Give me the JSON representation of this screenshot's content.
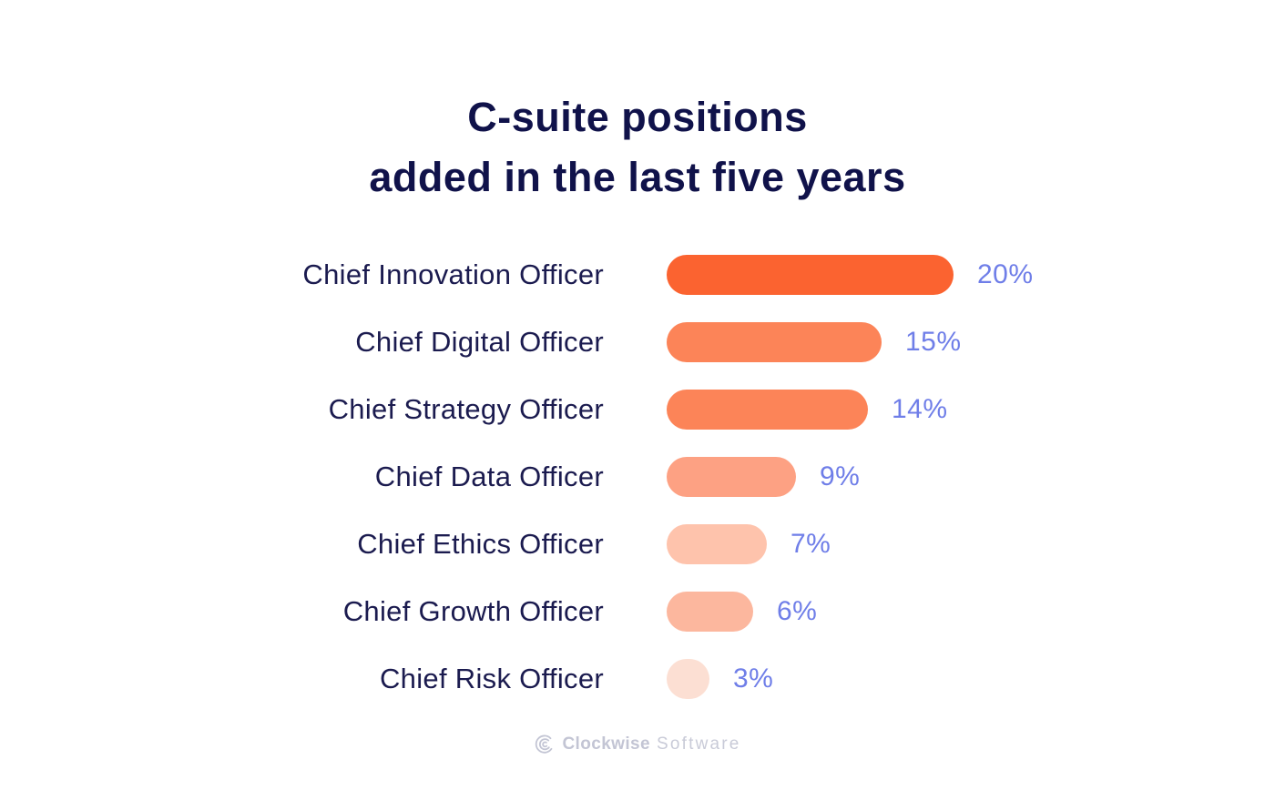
{
  "title": {
    "line1": "C-suite positions",
    "line2": "added in the last five years"
  },
  "chart_data": {
    "type": "bar",
    "orientation": "horizontal",
    "title": "C-suite positions added in the last five years",
    "categories": [
      "Chief Innovation Officer",
      "Chief Digital Officer",
      "Chief Strategy Officer",
      "Chief Data Officer",
      "Chief Ethics Officer",
      "Chief Growth Officer",
      "Chief Risk Officer"
    ],
    "values": [
      20,
      15,
      14,
      9,
      7,
      6,
      3
    ],
    "value_labels": [
      "20%",
      "15%",
      "14%",
      "9%",
      "7%",
      "6%",
      "3%"
    ],
    "value_suffix": "%",
    "xlim": [
      0,
      20
    ],
    "grid": false,
    "legend": false,
    "bar_colors": [
      "#FB6330",
      "#FC8458",
      "#FC8458",
      "#FDA183",
      "#FEC3AC",
      "#FCB79E",
      "#FCDFD3"
    ],
    "category_label_color": "#1B1B4F",
    "value_label_color": "#6F7EE8",
    "title_color": "#10124A"
  },
  "footer": {
    "brand_bold": "Clockwise",
    "brand_light": "Software",
    "logo_icon": "clockwise-arcs-icon",
    "brand_color": "#C3C5D4"
  }
}
